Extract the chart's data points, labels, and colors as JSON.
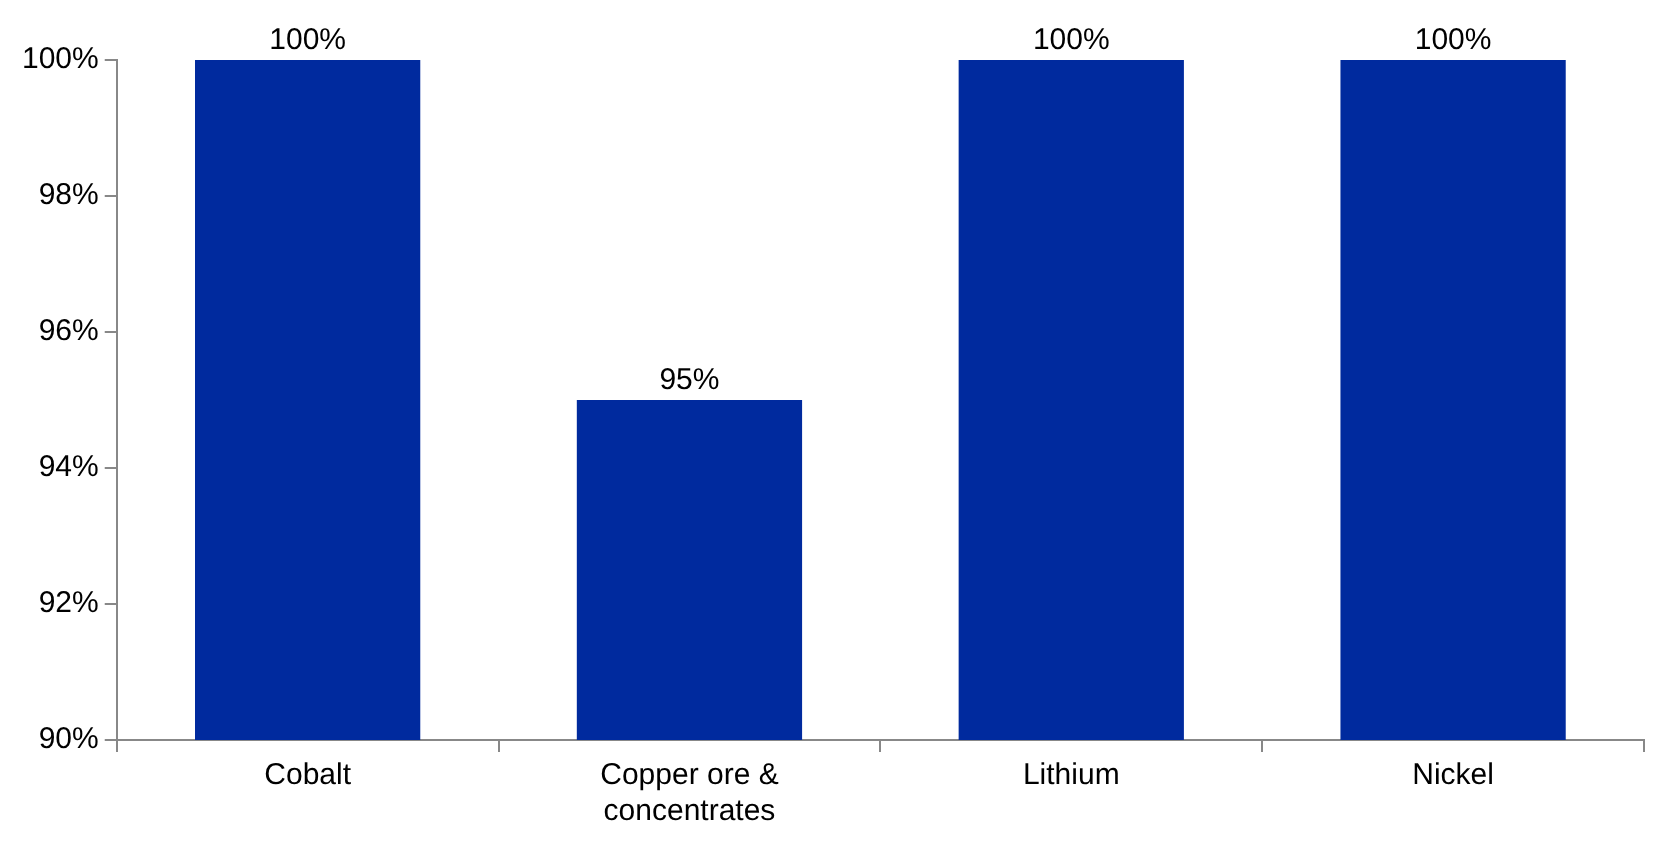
{
  "chart_data": {
    "type": "bar",
    "categories": [
      "Cobalt",
      "Copper ore & concentrates",
      "Lithium",
      "Nickel"
    ],
    "values": [
      100,
      95,
      100,
      100
    ],
    "color": "#002a9e",
    "value_labels": [
      "100%",
      "95%",
      "100%",
      "100%"
    ],
    "ylim": [
      90,
      100
    ],
    "yticks": [
      {
        "value": 90,
        "label": "90%"
      },
      {
        "value": 92,
        "label": "92%"
      },
      {
        "value": 94,
        "label": "94%"
      },
      {
        "value": 96,
        "label": "96%"
      },
      {
        "value": 98,
        "label": "98%"
      },
      {
        "value": 100,
        "label": "100%"
      }
    ]
  }
}
